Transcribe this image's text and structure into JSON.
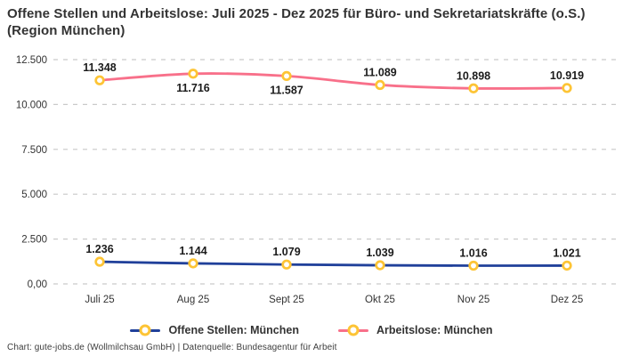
{
  "title": "Offene Stellen und Arbeitslose: Juli 2025 - Dez 2025 für Büro- und Sekretariatskräfte (o.S.) (Region München)",
  "footer": "Chart: gute-jobs.de (Wollmilchsau GmbH) | Datenquelle: Bundesagentur für Arbeit",
  "colors": {
    "background": "#ffffff",
    "title_text": "#333333",
    "axis_text": "#333333",
    "data_label_text": "#1b1b1b",
    "gridline": "#c9c9c9",
    "marker_fill": "#ffffff",
    "marker_ring": "#fdc435"
  },
  "chart_data": {
    "type": "line",
    "categories": [
      "Juli 25",
      "Aug 25",
      "Sept 25",
      "Okt 25",
      "Nov 25",
      "Dez 25"
    ],
    "series": [
      {
        "name": "Offene Stellen: München",
        "color": "#20409a",
        "values": [
          1236,
          1144,
          1079,
          1039,
          1016,
          1021
        ],
        "labels": [
          "1.236",
          "1.144",
          "1.079",
          "1.039",
          "1.016",
          "1.021"
        ],
        "label_positions": [
          "above",
          "above",
          "above",
          "above",
          "above",
          "above"
        ]
      },
      {
        "name": "Arbeitslose: München",
        "color": "#f8708a",
        "values": [
          11348,
          11716,
          11587,
          11089,
          10898,
          10919
        ],
        "labels": [
          "11.348",
          "11.716",
          "11.587",
          "11.089",
          "10.898",
          "10.919"
        ],
        "label_positions": [
          "above",
          "below",
          "below",
          "above",
          "above",
          "above"
        ]
      }
    ],
    "yticks": [
      {
        "value": 0,
        "label": "0,00"
      },
      {
        "value": 2500,
        "label": "2.500"
      },
      {
        "value": 5000,
        "label": "5.000"
      },
      {
        "value": 7500,
        "label": "7.500"
      },
      {
        "value": 10000,
        "label": "10.000"
      },
      {
        "value": 12500,
        "label": "12.500"
      }
    ],
    "ylim": [
      0,
      12500
    ],
    "grid": "horizontal-dashed",
    "legend_position": "bottom",
    "xlabel": "",
    "ylabel": ""
  }
}
